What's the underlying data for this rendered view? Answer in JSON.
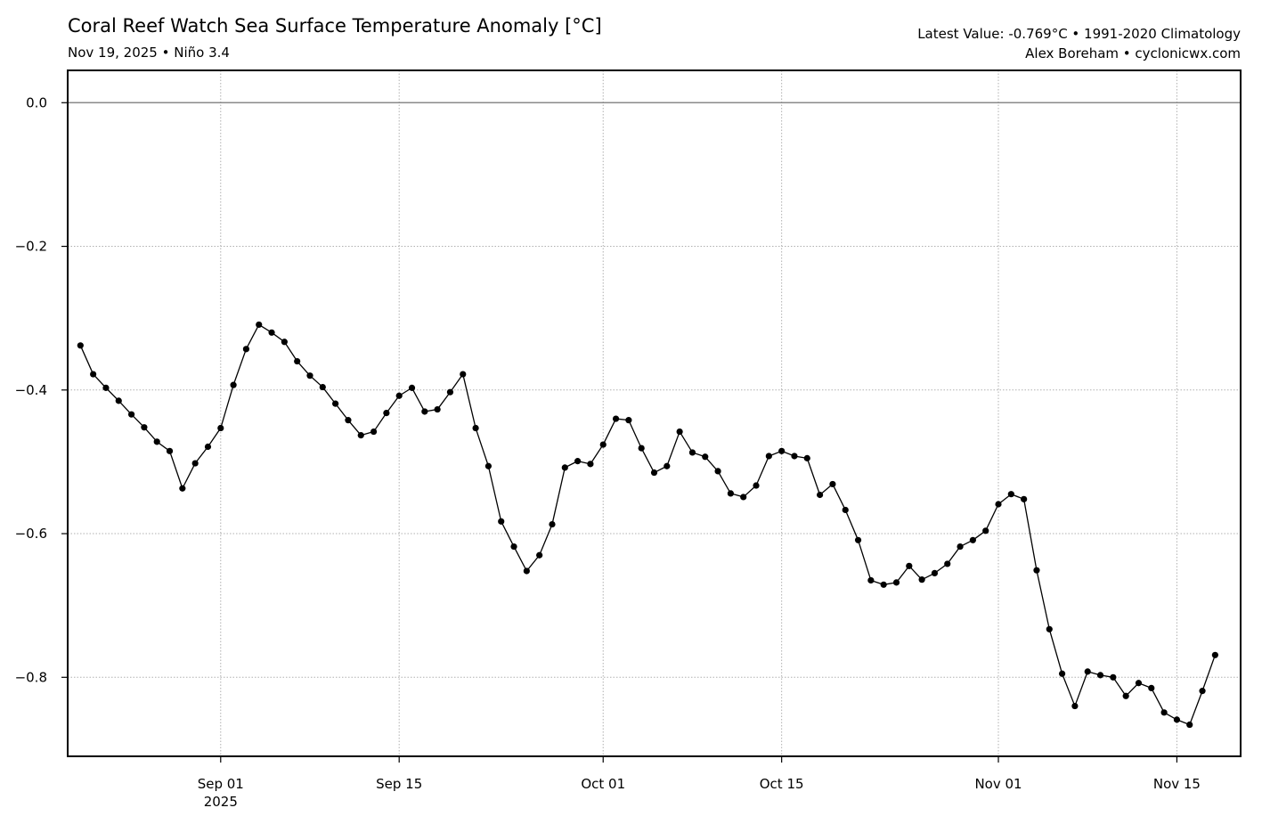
{
  "header": {
    "title": "Coral Reef Watch Sea Surface Temperature Anomaly [°C]",
    "subtitle": "Nov 19, 2025 • Niño 3.4",
    "info_line1": "Latest Value: -0.769°C • 1991-2020 Climatology",
    "info_line2": "Alex Boreham • cyclonicwx.com"
  },
  "chart_data": {
    "type": "line",
    "title": "Coral Reef Watch Sea Surface Temperature Anomaly [°C]",
    "xlabel": "",
    "ylabel": "",
    "x_start_date": "2025-08-21",
    "x_step_days": 1,
    "xlim": [
      "2025-08-20",
      "2025-11-20"
    ],
    "ylim": [
      -0.91,
      0.045
    ],
    "grid": true,
    "zero_line": true,
    "line_color": "#000000",
    "marker_color": "#000000",
    "y_ticks": [
      0.0,
      -0.2,
      -0.4,
      -0.6,
      -0.8
    ],
    "y_tick_labels": [
      "0.0",
      "−0.2",
      "−0.4",
      "−0.6",
      "−0.8"
    ],
    "x_ticks": [
      {
        "date": "2025-09-01",
        "label": "Sep 01",
        "sublabel": "2025"
      },
      {
        "date": "2025-09-15",
        "label": "Sep 15",
        "sublabel": ""
      },
      {
        "date": "2025-10-01",
        "label": "Oct 01",
        "sublabel": ""
      },
      {
        "date": "2025-10-15",
        "label": "Oct 15",
        "sublabel": ""
      },
      {
        "date": "2025-11-01",
        "label": "Nov 01",
        "sublabel": ""
      },
      {
        "date": "2025-11-15",
        "label": "Nov 15",
        "sublabel": ""
      }
    ],
    "values": [
      -0.338,
      -0.378,
      -0.397,
      -0.415,
      -0.434,
      -0.452,
      -0.472,
      -0.485,
      -0.537,
      -0.502,
      -0.479,
      -0.453,
      -0.393,
      -0.343,
      -0.309,
      -0.32,
      -0.333,
      -0.36,
      -0.38,
      -0.396,
      -0.419,
      -0.442,
      -0.463,
      -0.458,
      -0.432,
      -0.408,
      -0.397,
      -0.43,
      -0.427,
      -0.403,
      -0.378,
      -0.453,
      -0.506,
      -0.583,
      -0.618,
      -0.652,
      -0.63,
      -0.587,
      -0.508,
      -0.499,
      -0.503,
      -0.476,
      -0.44,
      -0.442,
      -0.481,
      -0.515,
      -0.506,
      -0.458,
      -0.487,
      -0.493,
      -0.513,
      -0.544,
      -0.549,
      -0.533,
      -0.492,
      -0.485,
      -0.492,
      -0.495,
      -0.546,
      -0.531,
      -0.567,
      -0.609,
      -0.665,
      -0.671,
      -0.668,
      -0.645,
      -0.664,
      -0.655,
      -0.642,
      -0.618,
      -0.609,
      -0.596,
      -0.559,
      -0.545,
      -0.552,
      -0.651,
      -0.733,
      -0.795,
      -0.84,
      -0.792,
      -0.797,
      -0.8,
      -0.826,
      -0.808,
      -0.815,
      -0.849,
      -0.859,
      -0.866,
      -0.819,
      -0.769
    ]
  }
}
